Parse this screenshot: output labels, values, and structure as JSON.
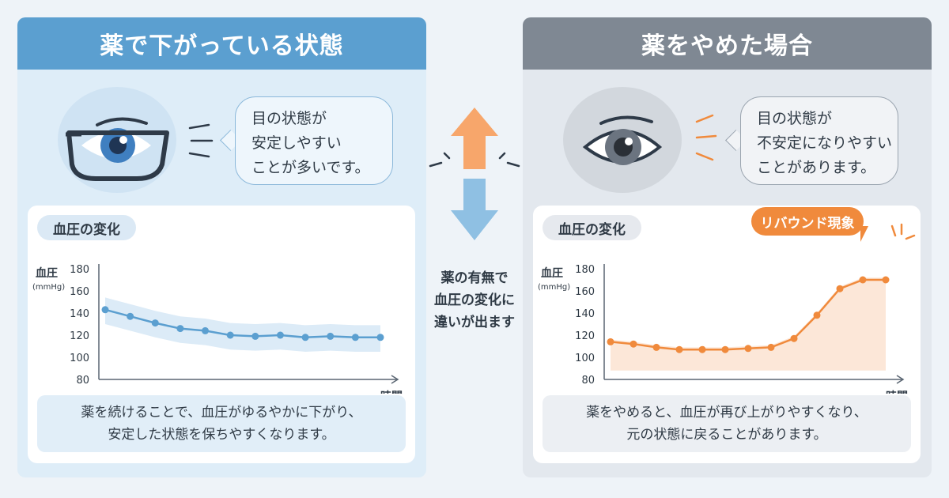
{
  "left": {
    "title": "薬で下がっている状態",
    "bubble": [
      "目の状態が",
      "安定しやすい",
      "ことが多いです。"
    ],
    "chip": "血圧の変化",
    "note": [
      "薬を続けることで、血圧がゆるやかに下がり、",
      "安定した状態を保ちやすくなります。"
    ]
  },
  "right": {
    "title": "薬をやめた場合",
    "bubble": [
      "目の状態が",
      "不安定になりやすい",
      "ことがあります。"
    ],
    "chip": "血圧の変化",
    "note": [
      "薬をやめると、血圧が再び上がりやすくなり、",
      "元の状態に戻ることがあります。"
    ],
    "callout": "リバウンド現象"
  },
  "center": {
    "lines": [
      "薬の有無で",
      "血圧の変化に",
      "違いが出ます"
    ]
  },
  "chart_data": [
    {
      "type": "line",
      "ylabel": "血圧",
      "yunit": "(mmHg)",
      "xlabel": "時間",
      "ylim": [
        80,
        180
      ],
      "yticks": [
        "180",
        "160",
        "140",
        "120",
        "100",
        "80"
      ],
      "series": [
        {
          "values": [
            143,
            137,
            131,
            126,
            124,
            120,
            119,
            120,
            118,
            119,
            118,
            118
          ]
        }
      ],
      "band": true,
      "color": "#5b9fd0"
    },
    {
      "type": "line",
      "ylabel": "血圧",
      "yunit": "(mmHg)",
      "xlabel": "時間",
      "ylim": [
        80,
        180
      ],
      "yticks": [
        "180",
        "160",
        "140",
        "120",
        "100",
        "80"
      ],
      "series": [
        {
          "values": [
            114,
            112,
            109,
            107,
            107,
            107,
            108,
            109,
            117,
            138,
            162,
            170,
            170
          ]
        }
      ],
      "area": true,
      "color": "#f08a3c"
    }
  ],
  "colors": {
    "blue": "#5b9fd0",
    "orange": "#f08a3c",
    "gray": "#7f8893"
  }
}
